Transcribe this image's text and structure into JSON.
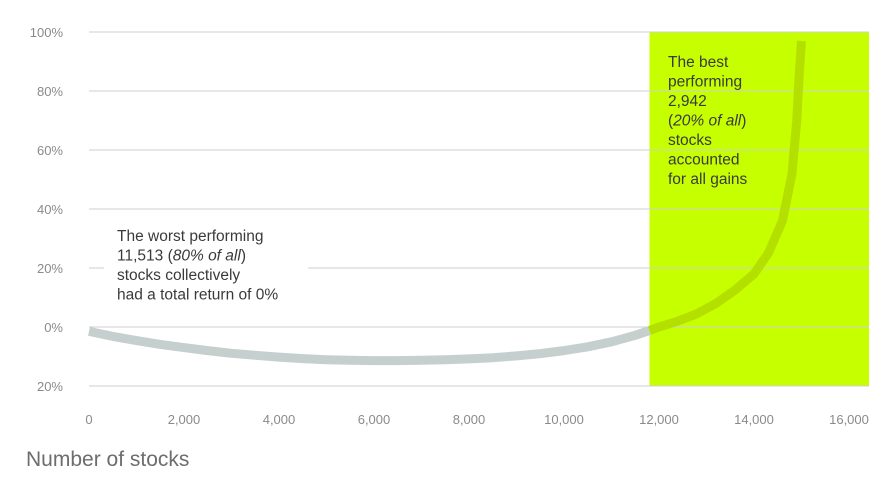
{
  "chart_data": {
    "type": "line",
    "title": "",
    "xlabel": "Number of stocks",
    "ylabel": "",
    "xlim": [
      0,
      16000
    ],
    "ylim": [
      -20,
      100
    ],
    "x_ticks": [
      0,
      2000,
      4000,
      6000,
      8000,
      10000,
      12000,
      14000,
      16000
    ],
    "x_tick_labels": [
      "0",
      "2,000",
      "4,000",
      "6,000",
      "8,000",
      "10,000",
      "12,000",
      "14,000",
      "16,000"
    ],
    "y_ticks": [
      100,
      80,
      60,
      40,
      20,
      0,
      -20
    ],
    "y_tick_labels": [
      "100%",
      "80%",
      "60%",
      "40%",
      "20%",
      "0%",
      "20%"
    ],
    "grid": "horizontal",
    "highlight": {
      "x_from": 11800,
      "x_to": 16000,
      "color": "#c6ff00"
    },
    "series": [
      {
        "color": "#c5cfcd",
        "highlight_color": "#b4e000",
        "points": [
          [
            0,
            -1.5
          ],
          [
            500,
            -3.2
          ],
          [
            1000,
            -4.6
          ],
          [
            1500,
            -5.9
          ],
          [
            2000,
            -7.0
          ],
          [
            2500,
            -8.0
          ],
          [
            3000,
            -8.9
          ],
          [
            3500,
            -9.6
          ],
          [
            4000,
            -10.2
          ],
          [
            4500,
            -10.7
          ],
          [
            5000,
            -11.1
          ],
          [
            5500,
            -11.3
          ],
          [
            6000,
            -11.4
          ],
          [
            6500,
            -11.4
          ],
          [
            7000,
            -11.3
          ],
          [
            7500,
            -11.1
          ],
          [
            8000,
            -10.8
          ],
          [
            8500,
            -10.4
          ],
          [
            9000,
            -9.8
          ],
          [
            9500,
            -9.0
          ],
          [
            10000,
            -8.0
          ],
          [
            10500,
            -6.7
          ],
          [
            11000,
            -5.0
          ],
          [
            11500,
            -2.8
          ],
          [
            11800,
            -1.2
          ],
          [
            12000,
            0
          ],
          [
            12400,
            2.0
          ],
          [
            12800,
            4.5
          ],
          [
            13200,
            8.0
          ],
          [
            13600,
            12.5
          ],
          [
            14000,
            18.0
          ],
          [
            14300,
            25.0
          ],
          [
            14600,
            36.0
          ],
          [
            14800,
            52.0
          ],
          [
            14900,
            70.0
          ],
          [
            14950,
            85.0
          ],
          [
            15000,
            97.0
          ]
        ]
      }
    ],
    "annotations": [
      {
        "lines": [
          "The worst performing",
          "11,513 (|80% of all|)",
          "stocks collectively",
          "had a total return of 0%"
        ]
      },
      {
        "lines": [
          "The best",
          "performing",
          "2,942",
          "(|20% of all|)",
          "stocks",
          "accounted",
          "for all gains"
        ]
      }
    ]
  }
}
